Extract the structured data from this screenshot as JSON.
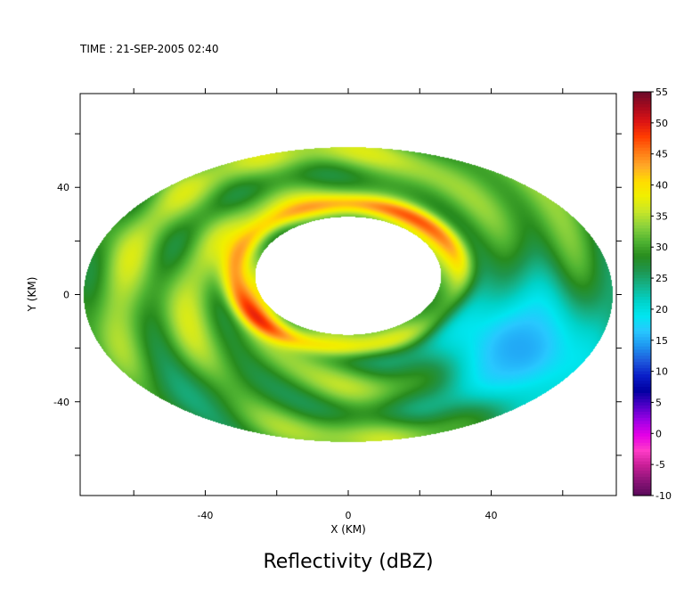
{
  "chart_data": {
    "type": "heatmap",
    "subtitle": "TIME : 21-SEP-2005 02:40",
    "title": "Reflectivity (dBZ)",
    "xlabel": "X (KM)",
    "ylabel": "Y (KM)",
    "xlim": [
      -75,
      75
    ],
    "ylim": [
      -75,
      75
    ],
    "x_ticks": [
      -40,
      0,
      40
    ],
    "y_ticks": [
      -40,
      0,
      40
    ],
    "grid": false,
    "colorbar": {
      "range": [
        -10,
        55
      ],
      "step": 5,
      "tick_labels": [
        "55",
        "50",
        "45",
        "40",
        "35",
        "30",
        "25",
        "20",
        "15",
        "10",
        "5",
        "0",
        "-5",
        "-10"
      ],
      "colors": [
        "#6a0a2a",
        "#a50a1e",
        "#dc1414",
        "#ff3c00",
        "#ff7814",
        "#ffaa28",
        "#ffdc00",
        "#f0f000",
        "#c8e628",
        "#8cd23c",
        "#50b432",
        "#288c1e",
        "#1e9650",
        "#14b48c",
        "#00d2c8",
        "#00e6f0",
        "#28c8ff",
        "#1e96f0",
        "#1e5adc",
        "#0a1ec8",
        "#0000a0",
        "#5000c8",
        "#a000e6",
        "#e600e6",
        "#ff3cc8",
        "#c81e96",
        "#8c1478",
        "#5a0a5a"
      ]
    },
    "storm": {
      "outer_radius_km": [
        74,
        55
      ],
      "eye_center_km": [
        0,
        7
      ],
      "eye_radius_km": [
        26,
        22
      ],
      "eyewall_peak_dbz": 47,
      "background_dbz": 32,
      "weak_echo_region_dbz": 15
    }
  }
}
